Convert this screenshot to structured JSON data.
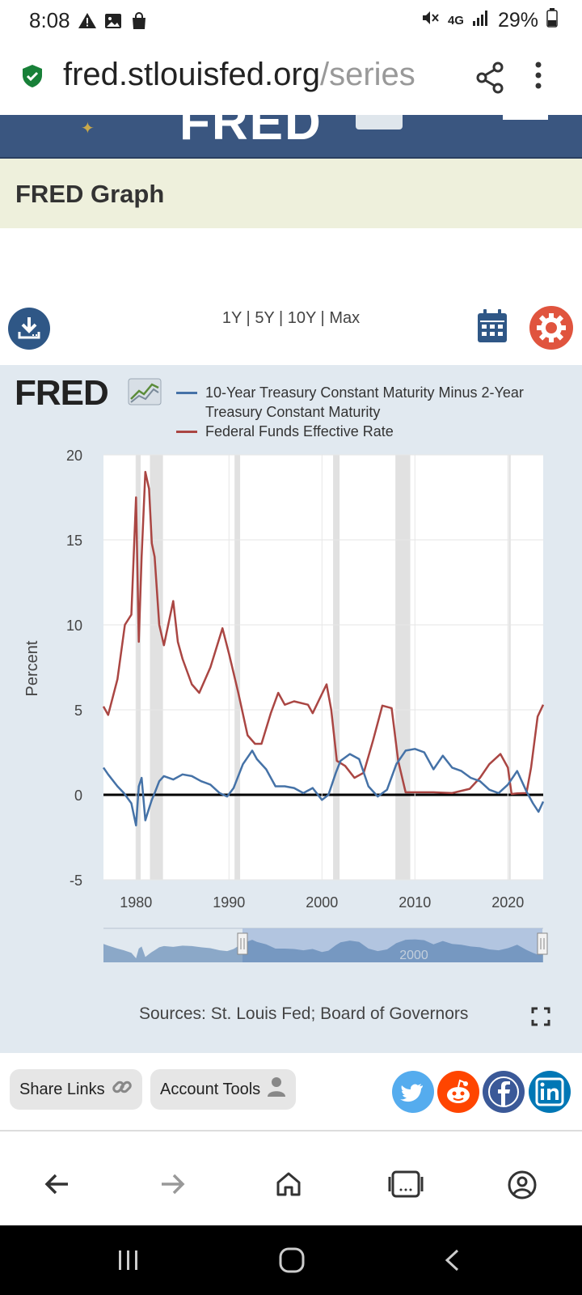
{
  "status_bar": {
    "time": "8:08",
    "battery": "29%",
    "network": "4G"
  },
  "browser": {
    "url_host": "fred.stlouisfed.org",
    "url_path": "/series"
  },
  "page": {
    "title": "FRED Graph"
  },
  "toolbar": {
    "range_1y": "1Y",
    "range_5y": "5Y",
    "range_10y": "10Y",
    "range_max": "Max",
    "separator": "|"
  },
  "graph": {
    "logo_text": "FRED",
    "sources": "Sources: St. Louis Fed; Board of Governors",
    "navigator_label": "2000"
  },
  "chart_data": {
    "type": "line",
    "ylabel": "Percent",
    "xlabel": "",
    "ylim": [
      -5,
      20
    ],
    "xlim": [
      1976.5,
      2023.8
    ],
    "yticks": [
      -5,
      0,
      5,
      10,
      15,
      20
    ],
    "xticks": [
      1980,
      1990,
      2000,
      2010,
      2020
    ],
    "grid": true,
    "legend_position": "top",
    "recessions": [
      [
        1980.0,
        1980.5
      ],
      [
        1981.5,
        1982.9
      ],
      [
        1990.6,
        1991.2
      ],
      [
        2001.2,
        2001.9
      ],
      [
        2007.9,
        2009.5
      ],
      [
        2020.1,
        2020.3
      ]
    ],
    "series": [
      {
        "name": "10-Year Treasury Constant Maturity Minus 2-Year Treasury Constant Maturity",
        "color": "#4572a7",
        "x": [
          1976.5,
          1977,
          1978,
          1978.7,
          1979.5,
          1980.0,
          1980.3,
          1980.6,
          1981.0,
          1981.4,
          1981.7,
          1982.0,
          1982.5,
          1983,
          1984,
          1985,
          1986,
          1987,
          1988,
          1989,
          1989.8,
          1990.5,
          1991.5,
          1992.5,
          1993,
          1994,
          1995,
          1996,
          1997,
          1998,
          1999,
          2000,
          2000.7,
          2001.5,
          2002,
          2003,
          2004,
          2005,
          2006,
          2007,
          2008,
          2009,
          2010,
          2011,
          2012,
          2013,
          2014,
          2015,
          2016,
          2017,
          2018,
          2019,
          2020,
          2021,
          2022,
          2022.7,
          2023.3,
          2023.8
        ],
        "values": [
          1.6,
          1.2,
          0.5,
          0.1,
          -0.5,
          -1.8,
          0.5,
          1.0,
          -1.5,
          -0.8,
          -0.3,
          0.1,
          0.8,
          1.1,
          0.9,
          1.2,
          1.1,
          0.8,
          0.6,
          0.1,
          -0.1,
          0.4,
          1.8,
          2.6,
          2.1,
          1.5,
          0.5,
          0.5,
          0.4,
          0.1,
          0.4,
          -0.3,
          0.0,
          1.3,
          2.0,
          2.4,
          2.1,
          0.5,
          -0.1,
          0.3,
          1.8,
          2.6,
          2.7,
          2.5,
          1.5,
          2.3,
          1.6,
          1.4,
          1.0,
          0.8,
          0.3,
          0.1,
          0.6,
          1.4,
          0.2,
          -0.5,
          -1.0,
          -0.4
        ]
      },
      {
        "name": "Federal Funds Effective Rate",
        "color": "#aa4643",
        "x": [
          1976.5,
          1977,
          1978,
          1978.8,
          1979.5,
          1980.0,
          1980.3,
          1980.6,
          1981.0,
          1981.4,
          1981.7,
          1982.0,
          1982.5,
          1983.0,
          1984.0,
          1984.5,
          1985.0,
          1986.0,
          1986.8,
          1988.0,
          1989.3,
          1990.0,
          1991.0,
          1992.0,
          1992.8,
          1993.5,
          1994.5,
          1995.3,
          1996.0,
          1997.0,
          1998.5,
          1999.0,
          2000.5,
          2001.0,
          2001.6,
          2002.5,
          2003.5,
          2004.5,
          2005.5,
          2006.5,
          2007.5,
          2008.2,
          2009.0,
          2010,
          2012,
          2014,
          2015.9,
          2017,
          2018,
          2019.2,
          2020.0,
          2020.4,
          2021,
          2022.0,
          2022.5,
          2023.2,
          2023.8
        ],
        "values": [
          5.2,
          4.7,
          6.8,
          10.0,
          10.6,
          17.5,
          9.0,
          14.0,
          19.0,
          18.0,
          14.8,
          14.0,
          10.0,
          8.8,
          11.4,
          9.0,
          8.0,
          6.5,
          6.0,
          7.5,
          9.8,
          8.3,
          6.0,
          3.5,
          3.0,
          3.0,
          4.8,
          6.0,
          5.3,
          5.5,
          5.3,
          4.8,
          6.5,
          5.0,
          2.0,
          1.7,
          1.0,
          1.3,
          3.2,
          5.25,
          5.1,
          2.0,
          0.15,
          0.15,
          0.15,
          0.1,
          0.35,
          1.0,
          1.8,
          2.4,
          1.6,
          0.05,
          0.08,
          0.1,
          1.6,
          4.6,
          5.3
        ]
      }
    ]
  },
  "actions": {
    "share_links": "Share Links",
    "account_tools": "Account Tools"
  },
  "colors": {
    "header_blue": "#3a5680",
    "title_band": "#eef0dc",
    "graph_bg": "#e1e9f0",
    "accent_orange": "#e0543e"
  }
}
